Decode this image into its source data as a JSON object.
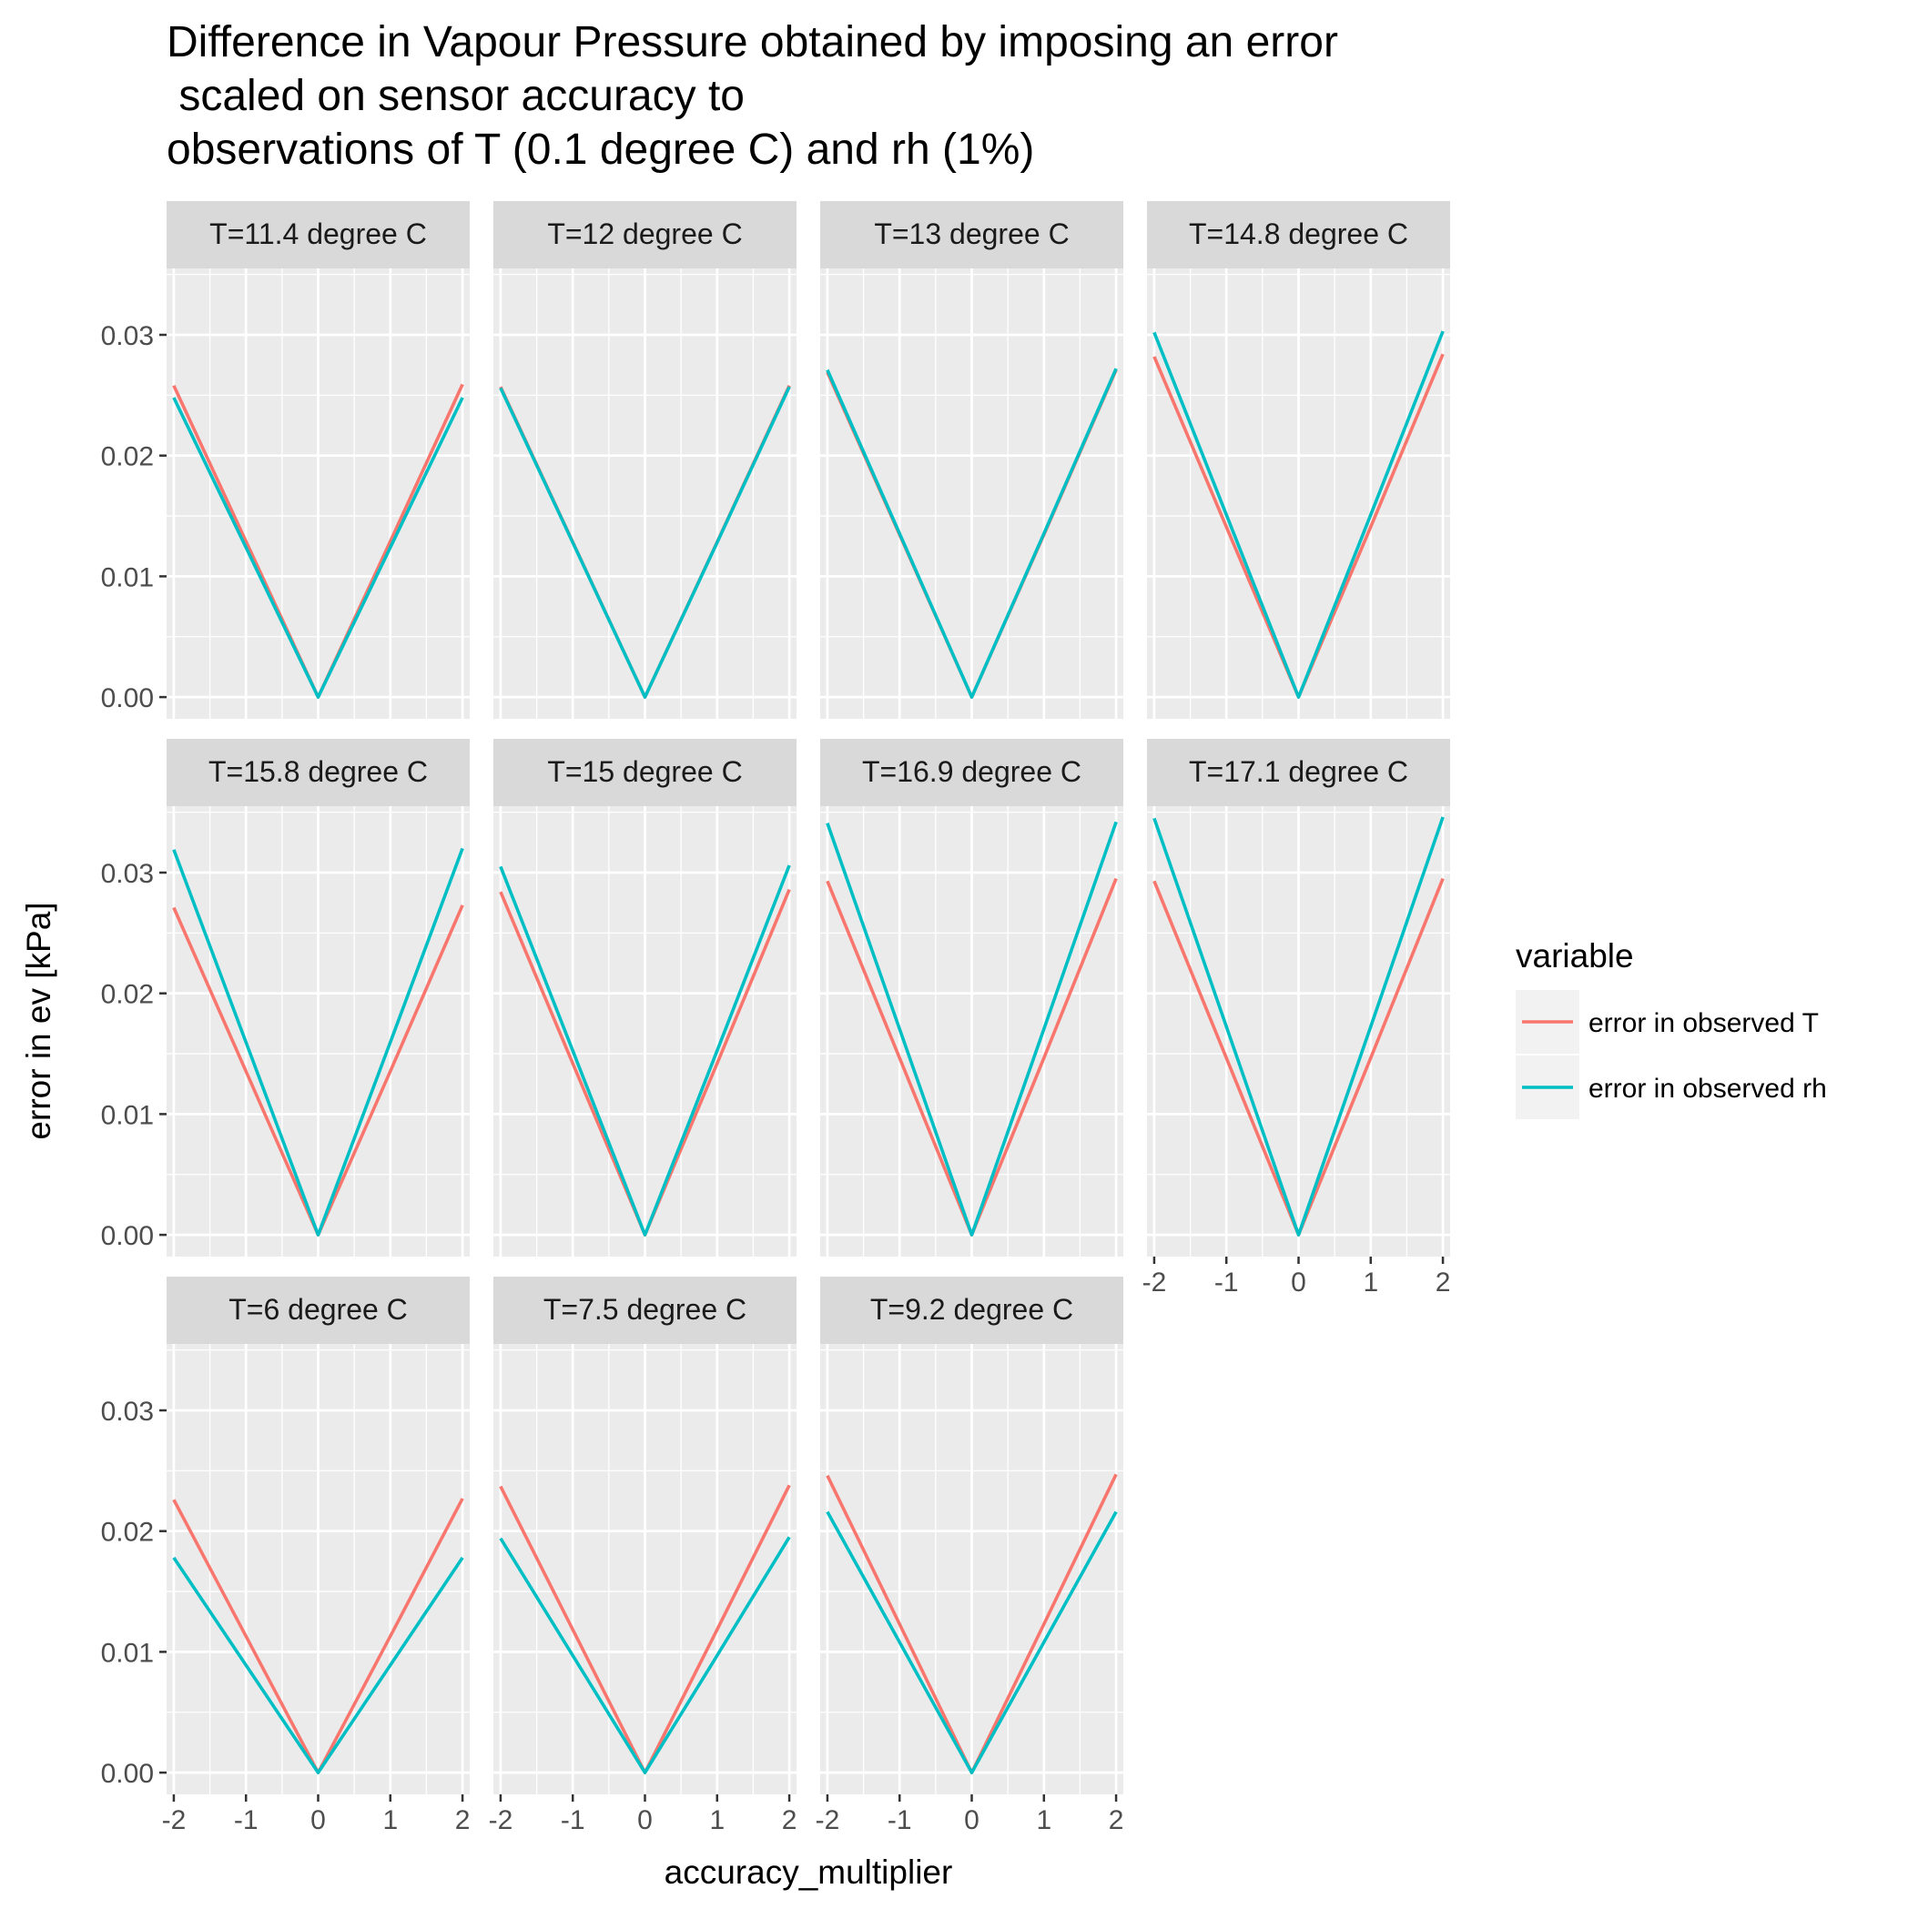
{
  "chart_data": {
    "type": "line",
    "title": "Difference in Vapour Pressure obtained by imposing an error\n scaled on sensor accuracy to\nobservations of T (0.1 degree C) and rh (1%)",
    "xlabel": "accuracy_multiplier",
    "ylabel": "error in ev [kPa]",
    "xlim": [
      -2.1,
      2.1
    ],
    "ylim": [
      -0.0018,
      0.0355
    ],
    "x_ticks": [
      -2,
      -1,
      0,
      1,
      2
    ],
    "x_tick_labels": [
      "-2",
      "-1",
      "0",
      "1",
      "2"
    ],
    "y_ticks": [
      0.0,
      0.01,
      0.02,
      0.03
    ],
    "y_tick_labels": [
      "0.00",
      "0.01",
      "0.02",
      "0.03"
    ],
    "grid": true,
    "facet_layout": {
      "ncol": 4,
      "nrow": 3
    },
    "legend": {
      "title": "variable",
      "position": "right",
      "entries": [
        {
          "label": "error in observed T",
          "color": "#F8766D"
        },
        {
          "label": "error in observed rh",
          "color": "#00BFC4"
        }
      ]
    },
    "x": [
      -2,
      -1,
      0,
      1,
      2
    ],
    "panels": [
      {
        "label": "T=11.4 degree C",
        "series": [
          {
            "name": "error in observed T",
            "color": "#F8766D",
            "values": [
              0.0258,
              0.0129,
              0.0,
              0.0129,
              0.0259
            ]
          },
          {
            "name": "error in observed rh",
            "color": "#00BFC4",
            "values": [
              0.0248,
              0.0124,
              0.0,
              0.0124,
              0.0248
            ]
          }
        ]
      },
      {
        "label": "T=12 degree C",
        "series": [
          {
            "name": "error in observed T",
            "color": "#F8766D",
            "values": [
              0.0257,
              0.01285,
              0.0,
              0.01285,
              0.0258
            ]
          },
          {
            "name": "error in observed rh",
            "color": "#00BFC4",
            "values": [
              0.0256,
              0.0128,
              0.0,
              0.0128,
              0.0257
            ]
          }
        ]
      },
      {
        "label": "T=13 degree C",
        "series": [
          {
            "name": "error in observed T",
            "color": "#F8766D",
            "values": [
              0.0269,
              0.01345,
              0.0,
              0.01345,
              0.0271
            ]
          },
          {
            "name": "error in observed rh",
            "color": "#00BFC4",
            "values": [
              0.0271,
              0.01355,
              0.0,
              0.01355,
              0.0272
            ]
          }
        ]
      },
      {
        "label": "T=14.8 degree C",
        "series": [
          {
            "name": "error in observed T",
            "color": "#F8766D",
            "values": [
              0.0282,
              0.0141,
              0.0,
              0.0141,
              0.0284
            ]
          },
          {
            "name": "error in observed rh",
            "color": "#00BFC4",
            "values": [
              0.0302,
              0.0151,
              0.0,
              0.0151,
              0.0303
            ]
          }
        ]
      },
      {
        "label": "T=15.8 degree C",
        "series": [
          {
            "name": "error in observed T",
            "color": "#F8766D",
            "values": [
              0.0271,
              0.01355,
              0.0,
              0.01355,
              0.0273
            ]
          },
          {
            "name": "error in observed rh",
            "color": "#00BFC4",
            "values": [
              0.0319,
              0.01595,
              0.0,
              0.01595,
              0.032
            ]
          }
        ]
      },
      {
        "label": "T=15 degree C",
        "series": [
          {
            "name": "error in observed T",
            "color": "#F8766D",
            "values": [
              0.0284,
              0.0142,
              0.0,
              0.0142,
              0.0286
            ]
          },
          {
            "name": "error in observed rh",
            "color": "#00BFC4",
            "values": [
              0.0305,
              0.01525,
              0.0,
              0.01525,
              0.0306
            ]
          }
        ]
      },
      {
        "label": "T=16.9 degree C",
        "series": [
          {
            "name": "error in observed T",
            "color": "#F8766D",
            "values": [
              0.0293,
              0.01465,
              0.0,
              0.01465,
              0.0295
            ]
          },
          {
            "name": "error in observed rh",
            "color": "#00BFC4",
            "values": [
              0.0341,
              0.01705,
              0.0,
              0.01705,
              0.0342
            ]
          }
        ]
      },
      {
        "label": "T=17.1 degree C",
        "series": [
          {
            "name": "error in observed T",
            "color": "#F8766D",
            "values": [
              0.0293,
              0.01465,
              0.0,
              0.01465,
              0.0295
            ]
          },
          {
            "name": "error in observed rh",
            "color": "#00BFC4",
            "values": [
              0.0345,
              0.01725,
              0.0,
              0.01725,
              0.0346
            ]
          }
        ]
      },
      {
        "label": "T=6 degree C",
        "series": [
          {
            "name": "error in observed T",
            "color": "#F8766D",
            "values": [
              0.0226,
              0.0113,
              0.0,
              0.0113,
              0.0227
            ]
          },
          {
            "name": "error in observed rh",
            "color": "#00BFC4",
            "values": [
              0.0178,
              0.0089,
              0.0,
              0.0089,
              0.0178
            ]
          }
        ]
      },
      {
        "label": "T=7.5 degree C",
        "series": [
          {
            "name": "error in observed T",
            "color": "#F8766D",
            "values": [
              0.0237,
              0.01185,
              0.0,
              0.01185,
              0.0238
            ]
          },
          {
            "name": "error in observed rh",
            "color": "#00BFC4",
            "values": [
              0.0194,
              0.0097,
              0.0,
              0.0097,
              0.0195
            ]
          }
        ]
      },
      {
        "label": "T=9.2 degree C",
        "series": [
          {
            "name": "error in observed T",
            "color": "#F8766D",
            "values": [
              0.0246,
              0.0123,
              0.0,
              0.0123,
              0.0247
            ]
          },
          {
            "name": "error in observed rh",
            "color": "#00BFC4",
            "values": [
              0.0216,
              0.0108,
              0.0,
              0.0108,
              0.0216
            ]
          }
        ]
      }
    ]
  }
}
